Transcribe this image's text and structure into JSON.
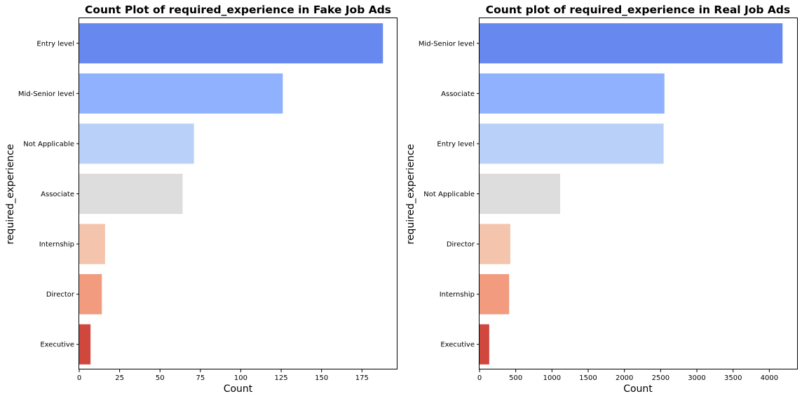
{
  "chart_data": [
    {
      "type": "bar",
      "orientation": "horizontal",
      "title": "Count Plot of required_experience in Fake Job Ads",
      "xlabel": "Count",
      "ylabel": "required_experience",
      "categories": [
        "Entry level",
        "Mid-Senior level",
        "Not Applicable",
        "Associate",
        "Internship",
        "Director",
        "Executive"
      ],
      "values": [
        188,
        126,
        71,
        64,
        16,
        14,
        7
      ],
      "xlim": [
        0,
        197
      ],
      "xticks": [
        0,
        25,
        50,
        75,
        100,
        125,
        150,
        175
      ],
      "colors": [
        "#6788ee",
        "#8fb1fe",
        "#b9d0f9",
        "#dddddd",
        "#f5c4ac",
        "#f39b7e",
        "#d0473d"
      ],
      "grid": false
    },
    {
      "type": "bar",
      "orientation": "horizontal",
      "title": "Count plot of required_experience in Real Job Ads",
      "xlabel": "Count",
      "ylabel": "required_experience",
      "categories": [
        "Mid-Senior level",
        "Associate",
        "Entry level",
        "Not Applicable",
        "Director",
        "Internship",
        "Executive"
      ],
      "values": [
        4183,
        2552,
        2541,
        1113,
        425,
        409,
        134
      ],
      "xlim": [
        0,
        4393
      ],
      "xticks": [
        0,
        500,
        1000,
        1500,
        2000,
        2500,
        3000,
        3500,
        4000
      ],
      "colors": [
        "#6788ee",
        "#8fb1fe",
        "#b9d0f9",
        "#dddddd",
        "#f5c4ac",
        "#f39b7e",
        "#d0473d"
      ],
      "grid": false
    }
  ]
}
